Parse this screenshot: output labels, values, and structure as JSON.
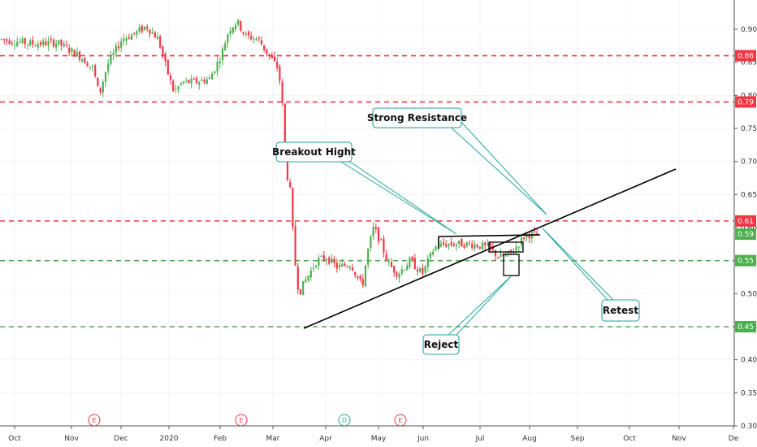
{
  "chart_data": {
    "type": "candlestick",
    "y_range": [
      0.3,
      0.93
    ],
    "y_ticks": [
      "0.30",
      "0.35",
      "0.40",
      "0.45",
      "0.50",
      "0.55",
      "0.60",
      "0.65",
      "0.70",
      "0.75",
      "0.80",
      "0.85",
      "0.90"
    ],
    "x_ticks": [
      "Oct",
      "Nov",
      "Dec",
      "2020",
      "Feb",
      "Mar",
      "Apr",
      "May",
      "Jun",
      "Jul",
      "Aug",
      "Sep",
      "Oct",
      "Nov",
      "De"
    ],
    "horizontal_levels": [
      {
        "value": 0.86,
        "label": "0.86",
        "color": "#f23645",
        "style": "dashed"
      },
      {
        "value": 0.79,
        "label": "0.79",
        "color": "#f23645",
        "style": "dashed"
      },
      {
        "value": 0.61,
        "label": "0.61",
        "color": "#f23645",
        "style": "dashed"
      },
      {
        "value": 0.55,
        "label": "0.55",
        "color": "#4caf50",
        "style": "dashed"
      },
      {
        "value": 0.45,
        "label": "0.45",
        "color": "#4caf50",
        "style": "dashed"
      }
    ],
    "last_price": {
      "value": 0.59,
      "label": "0.59",
      "color": "#4caf50"
    },
    "annotations": [
      {
        "text": "Strong Resistance"
      },
      {
        "text": "Breakout Hight"
      },
      {
        "text": "Retest"
      },
      {
        "text": "Reject"
      }
    ],
    "event_markers": [
      {
        "label": "E",
        "color": "#f23645"
      },
      {
        "label": "E",
        "color": "#f23645"
      },
      {
        "label": "D",
        "color": "#26a69a"
      },
      {
        "label": "E",
        "color": "#f23645"
      }
    ],
    "trendline_color": "#000000",
    "up_color": "#4caf50",
    "down_color": "#f23645",
    "callout_border_color": "#26a69a"
  }
}
